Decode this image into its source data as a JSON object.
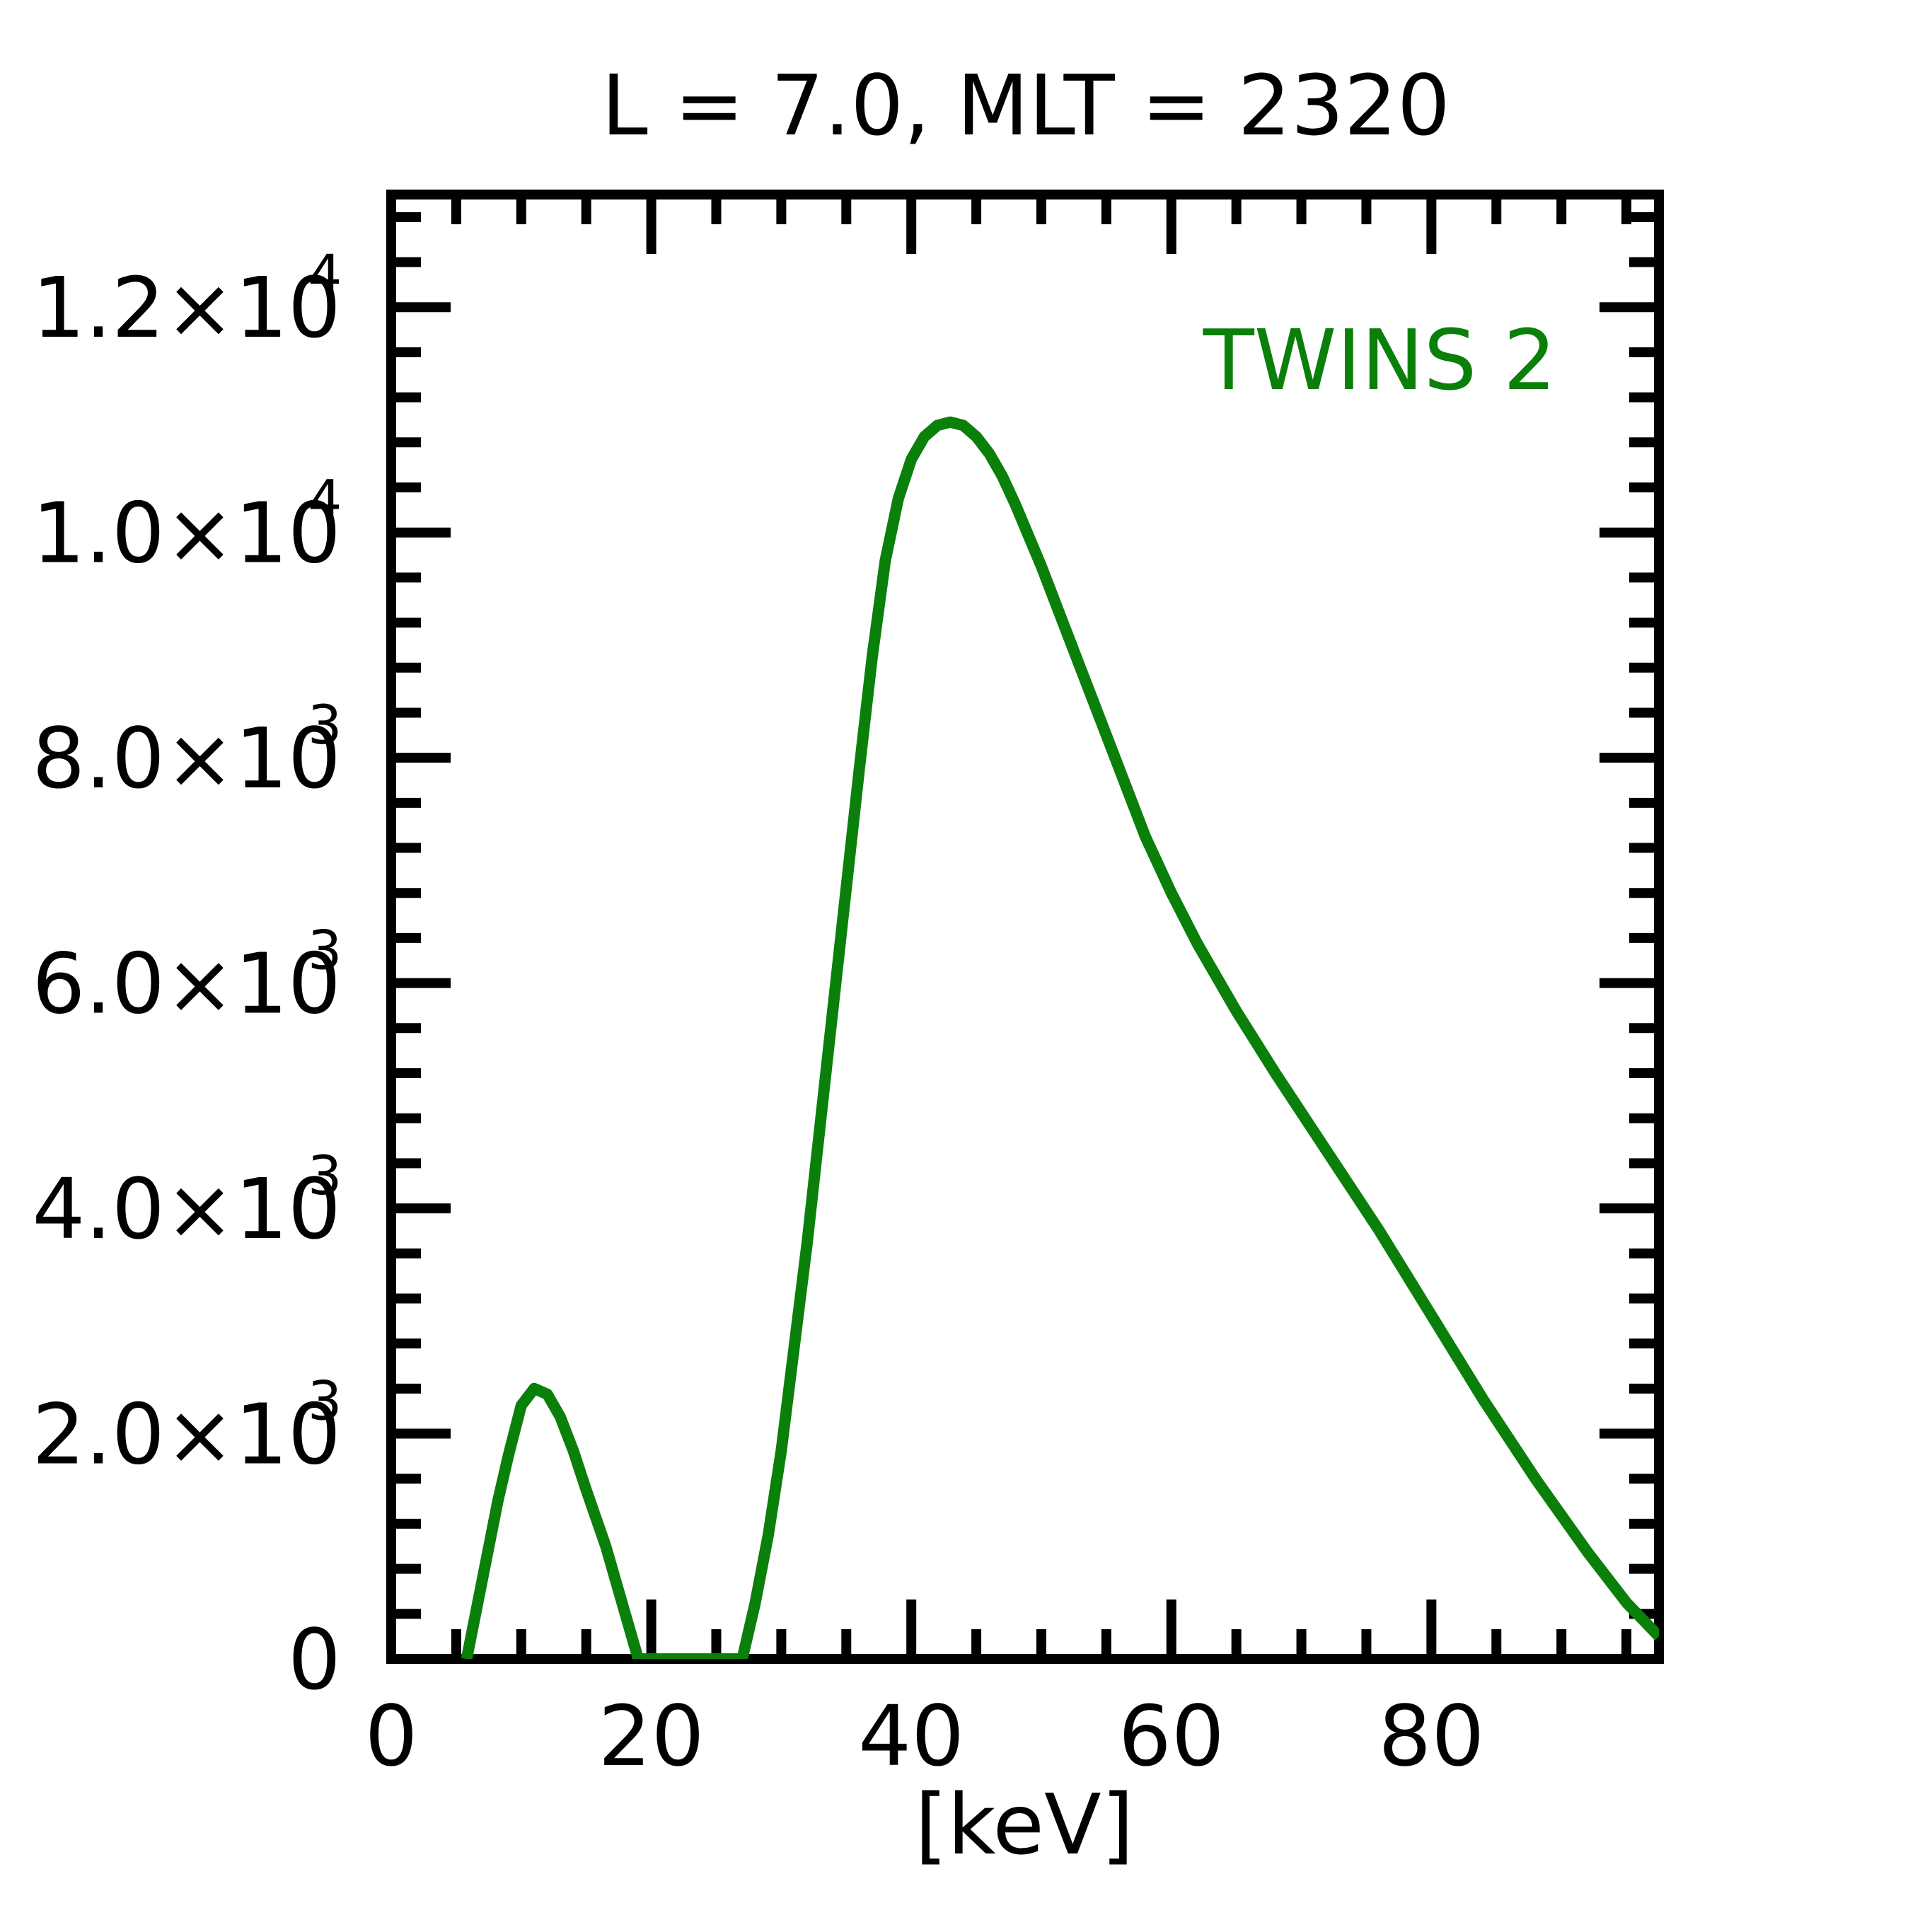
{
  "chart_data": {
    "type": "line",
    "title": "L =  7.0, MLT = 2320",
    "xlabel": "[keV]",
    "ylabel": "",
    "xlim": [
      0,
      97.5
    ],
    "ylim": [
      0,
      13000
    ],
    "x_ticks": [
      {
        "value": 0,
        "label": "0"
      },
      {
        "value": 20,
        "label": "20"
      },
      {
        "value": 40,
        "label": "40"
      },
      {
        "value": 60,
        "label": "60"
      },
      {
        "value": 80,
        "label": "80"
      }
    ],
    "y_ticks": [
      {
        "value": 0,
        "mant": "0",
        "exp": ""
      },
      {
        "value": 2000,
        "mant": "2.0×10",
        "exp": "3"
      },
      {
        "value": 4000,
        "mant": "4.0×10",
        "exp": "3"
      },
      {
        "value": 6000,
        "mant": "6.0×10",
        "exp": "3"
      },
      {
        "value": 8000,
        "mant": "8.0×10",
        "exp": "3"
      },
      {
        "value": 10000,
        "mant": "1.0×10",
        "exp": "4"
      },
      {
        "value": 12000,
        "mant": "1.2×10",
        "exp": "4"
      }
    ],
    "grid": false,
    "legend_position": "top-right",
    "series": [
      {
        "name": "TWINS 2",
        "color": "#0a7f0a",
        "x": [
          5.8,
          7.0,
          8.2,
          9.0,
          10.0,
          11.0,
          12.0,
          13.0,
          14.0,
          15.0,
          16.5,
          18.0,
          19.0,
          27.0,
          28.0,
          29.0,
          30.0,
          32.0,
          34.0,
          36.0,
          37.0,
          38.0,
          39.0,
          40.0,
          41.0,
          42.0,
          43.0,
          44.0,
          45.0,
          46.0,
          47.0,
          48.0,
          50.0,
          52.0,
          55.0,
          58.0,
          60.0,
          62.0,
          65.0,
          68.0,
          72.0,
          76.0,
          80.0,
          84.0,
          88.0,
          92.0,
          95.0,
          97.5
        ],
        "y": [
          0,
          700,
          1400,
          1800,
          2250,
          2400,
          2350,
          2150,
          1850,
          1500,
          1000,
          400,
          0,
          0,
          500,
          1100,
          1850,
          3700,
          5800,
          7900,
          8900,
          9750,
          10300,
          10650,
          10850,
          10950,
          10980,
          10950,
          10850,
          10700,
          10500,
          10250,
          9700,
          9100,
          8200,
          7300,
          6800,
          6350,
          5750,
          5200,
          4500,
          3800,
          3050,
          2300,
          1600,
          950,
          500,
          200
        ]
      }
    ]
  }
}
